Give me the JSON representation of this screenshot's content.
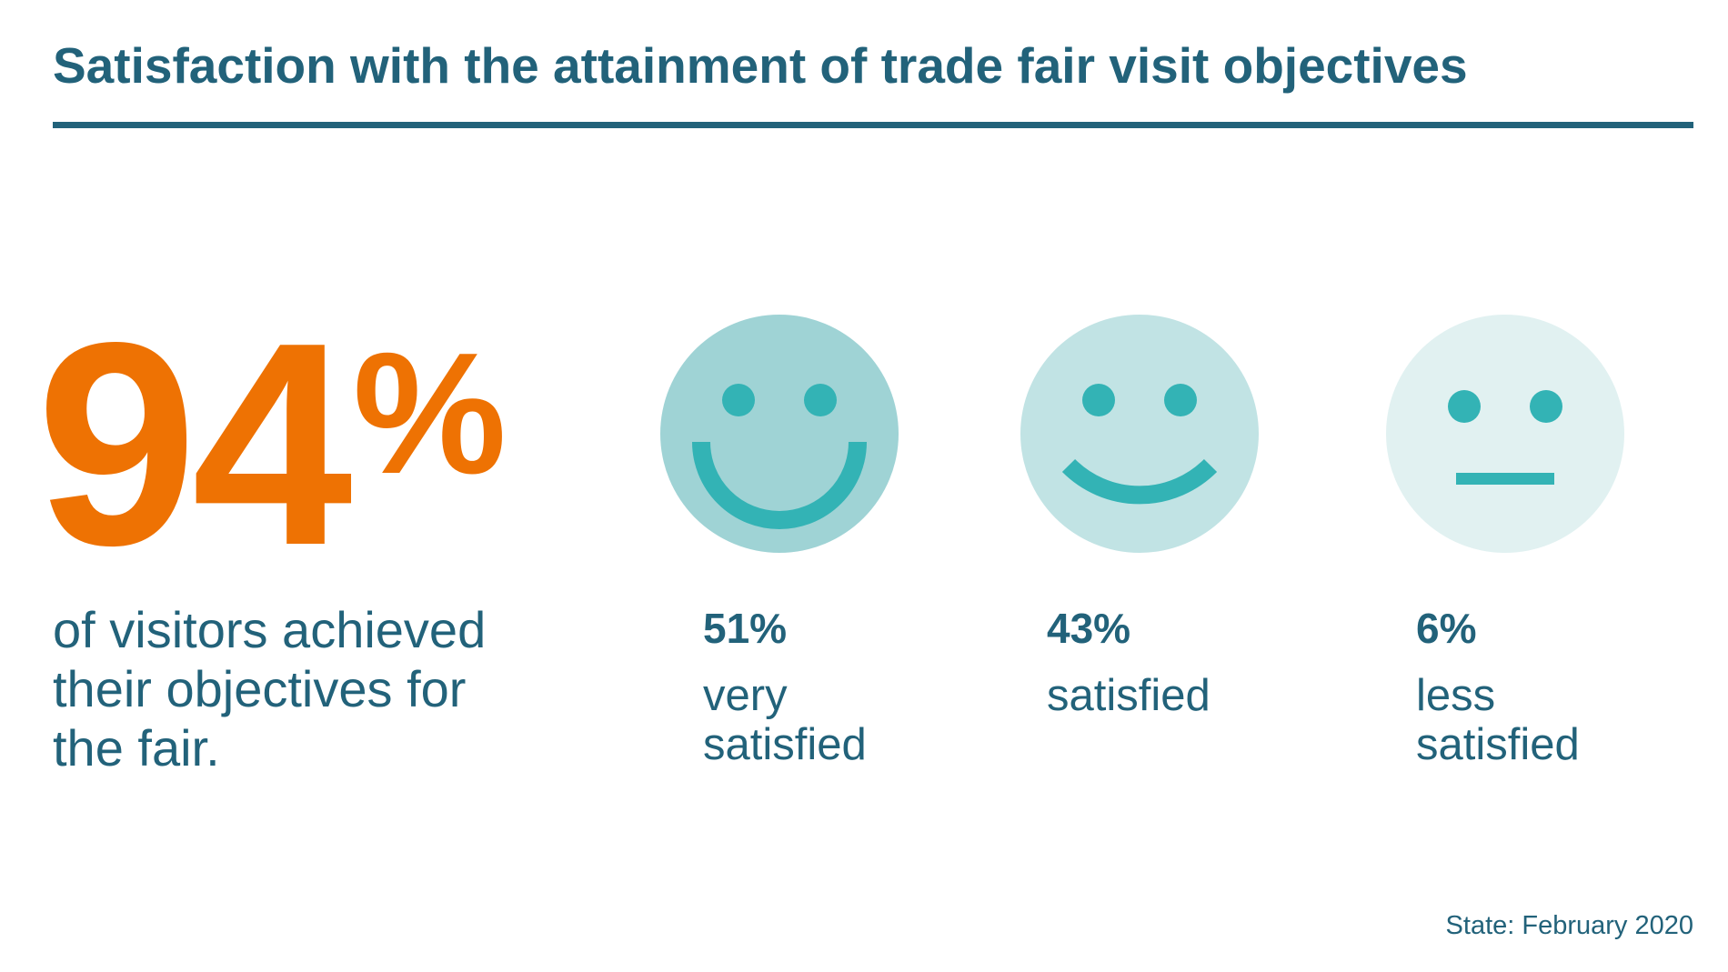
{
  "header": {
    "title": "Satisfaction with the attainment of trade fair visit objectives"
  },
  "highlight": {
    "number": "94",
    "unit": "%",
    "text": "of visitors achieved their objectives for the fair."
  },
  "items": [
    {
      "percent": "51%",
      "label": "very satisfied"
    },
    {
      "percent": "43%",
      "label": "satisfied"
    },
    {
      "percent": "6%",
      "label": "less satisfied"
    }
  ],
  "footnote": "State: February 2020"
}
